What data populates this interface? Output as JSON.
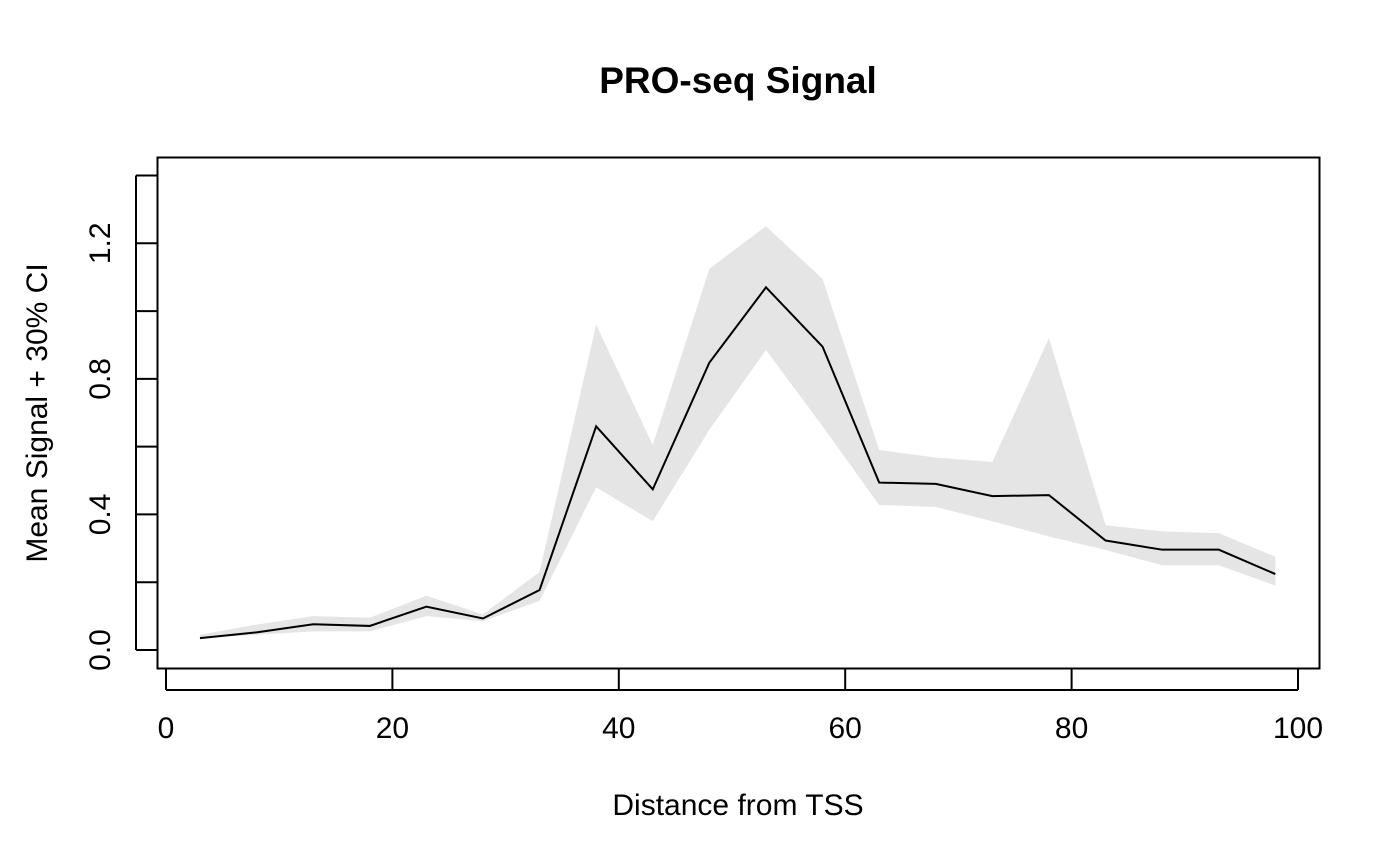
{
  "chart_data": {
    "type": "line",
    "title": "PRO-seq Signal",
    "xlabel": "Distance from TSS",
    "ylabel": "Mean Signal + 30% CI",
    "xlim": [
      0,
      100
    ],
    "ylim": [
      0,
      1.4
    ],
    "x_ticks": [
      "0",
      "20",
      "40",
      "60",
      "80",
      "100"
    ],
    "y_ticks": [
      "0.0",
      "0.4",
      "0.8",
      "1.2"
    ],
    "grid": false,
    "legend": "none",
    "x": [
      3,
      8,
      13,
      18,
      23,
      28,
      33,
      38,
      43,
      48,
      53,
      58,
      63,
      68,
      73,
      78,
      83,
      88,
      93,
      98
    ],
    "series": [
      {
        "values": [
          0.035,
          0.052,
          0.076,
          0.071,
          0.128,
          0.093,
          0.177,
          0.66,
          0.474,
          0.848,
          1.07,
          0.895,
          0.494,
          0.49,
          0.454,
          0.457,
          0.323,
          0.296,
          0.296,
          0.224
        ],
        "lower": [
          0.035,
          0.045,
          0.055,
          0.055,
          0.1,
          0.085,
          0.145,
          0.48,
          0.38,
          0.65,
          0.885,
          0.66,
          0.428,
          0.422,
          0.38,
          0.335,
          0.295,
          0.25,
          0.25,
          0.19
        ],
        "upper": [
          0.045,
          0.075,
          0.1,
          0.095,
          0.16,
          0.105,
          0.23,
          0.96,
          0.605,
          1.125,
          1.25,
          1.095,
          0.59,
          0.568,
          0.555,
          0.92,
          0.368,
          0.35,
          0.345,
          0.275
        ],
        "color": "#000000",
        "band_color": "#e5e5e5"
      }
    ]
  }
}
